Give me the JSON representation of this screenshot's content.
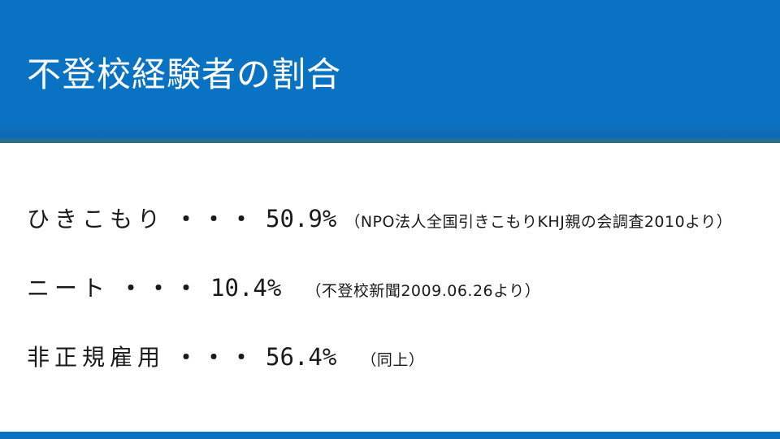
{
  "slide": {
    "title": "不登校経験者の割合",
    "stats": [
      {
        "label": "ひきこもり",
        "dots": "・・・",
        "value": "50.9%",
        "source": "（NPO法人全国引きこもりKHJ親の会調査2010より）"
      },
      {
        "label": "ニート",
        "dots": "・・・",
        "value": "10.4%",
        "source": "（不登校新聞2009.06.26より）"
      },
      {
        "label": "非正規雇用",
        "dots": "・・・",
        "value": "56.4%",
        "source": "（同上）"
      }
    ],
    "colors": {
      "header_blue": "#0A72C2",
      "edge_teal": "#2E6E87",
      "text": "#1A1A1A",
      "background": "#FFFFFF"
    }
  }
}
